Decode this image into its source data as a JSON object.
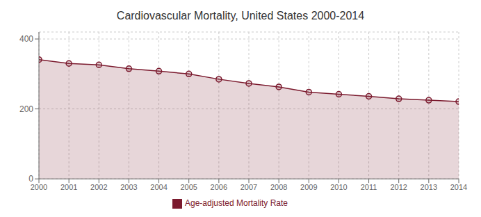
{
  "chart_data": {
    "type": "area",
    "title": "Cardiovascular Mortality, United States 2000-2014",
    "x": [
      2000,
      2001,
      2002,
      2003,
      2004,
      2005,
      2006,
      2007,
      2008,
      2009,
      2010,
      2011,
      2012,
      2013,
      2014
    ],
    "series": [
      {
        "name": "Age-adjusted Mortality Rate",
        "color": "#7B1A2E",
        "values": [
          341,
          330,
          326,
          315,
          308,
          300,
          285,
          273,
          263,
          248,
          242,
          236,
          229,
          225,
          221
        ],
        "marker": "circle"
      }
    ],
    "xlim": [
      2000,
      2014
    ],
    "xticks": [
      2000,
      2001,
      2002,
      2003,
      2004,
      2005,
      2006,
      2007,
      2008,
      2009,
      2010,
      2011,
      2012,
      2013,
      2014
    ],
    "ylim": [
      0,
      420
    ],
    "yticks": [
      0,
      200,
      400
    ],
    "grid": true,
    "legend": "bottom"
  }
}
